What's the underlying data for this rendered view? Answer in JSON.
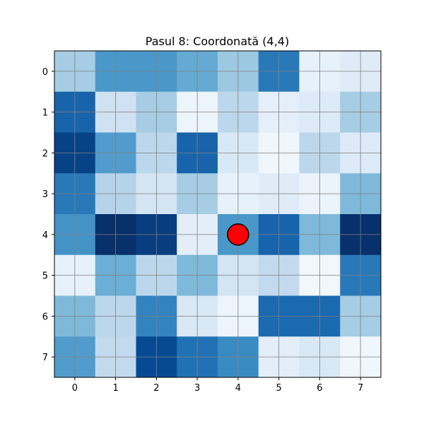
{
  "chart_data": {
    "type": "heatmap",
    "title": "Pasul 8: Coordonată (4,4)",
    "xlabel": "",
    "ylabel": "",
    "x_ticks": [
      "0",
      "1",
      "2",
      "3",
      "4",
      "5",
      "6",
      "7"
    ],
    "y_ticks": [
      "0",
      "1",
      "2",
      "3",
      "4",
      "5",
      "6",
      "7"
    ],
    "colormap": "Blues",
    "value_range": [
      0,
      1
    ],
    "grid": true,
    "grid_color": "#808080",
    "values": [
      [
        0.35,
        0.6,
        0.6,
        0.52,
        0.38,
        0.72,
        0.08,
        0.12
      ],
      [
        0.8,
        0.2,
        0.35,
        0.05,
        0.28,
        0.09,
        0.13,
        0.35
      ],
      [
        0.93,
        0.58,
        0.28,
        0.8,
        0.15,
        0.04,
        0.28,
        0.13
      ],
      [
        0.72,
        0.3,
        0.17,
        0.35,
        0.08,
        0.12,
        0.06,
        0.45
      ],
      [
        0.62,
        1.0,
        0.95,
        0.1,
        0.6,
        0.8,
        0.45,
        1.0
      ],
      [
        0.08,
        0.5,
        0.28,
        0.45,
        0.18,
        0.26,
        0.03,
        0.72
      ],
      [
        0.45,
        0.28,
        0.68,
        0.15,
        0.05,
        0.78,
        0.78,
        0.35
      ],
      [
        0.58,
        0.26,
        0.9,
        0.75,
        0.65,
        0.1,
        0.15,
        0.04
      ]
    ],
    "marker": {
      "x": 4,
      "y": 4,
      "fill_color": "#ff0000",
      "edge_color": "#000000"
    }
  }
}
